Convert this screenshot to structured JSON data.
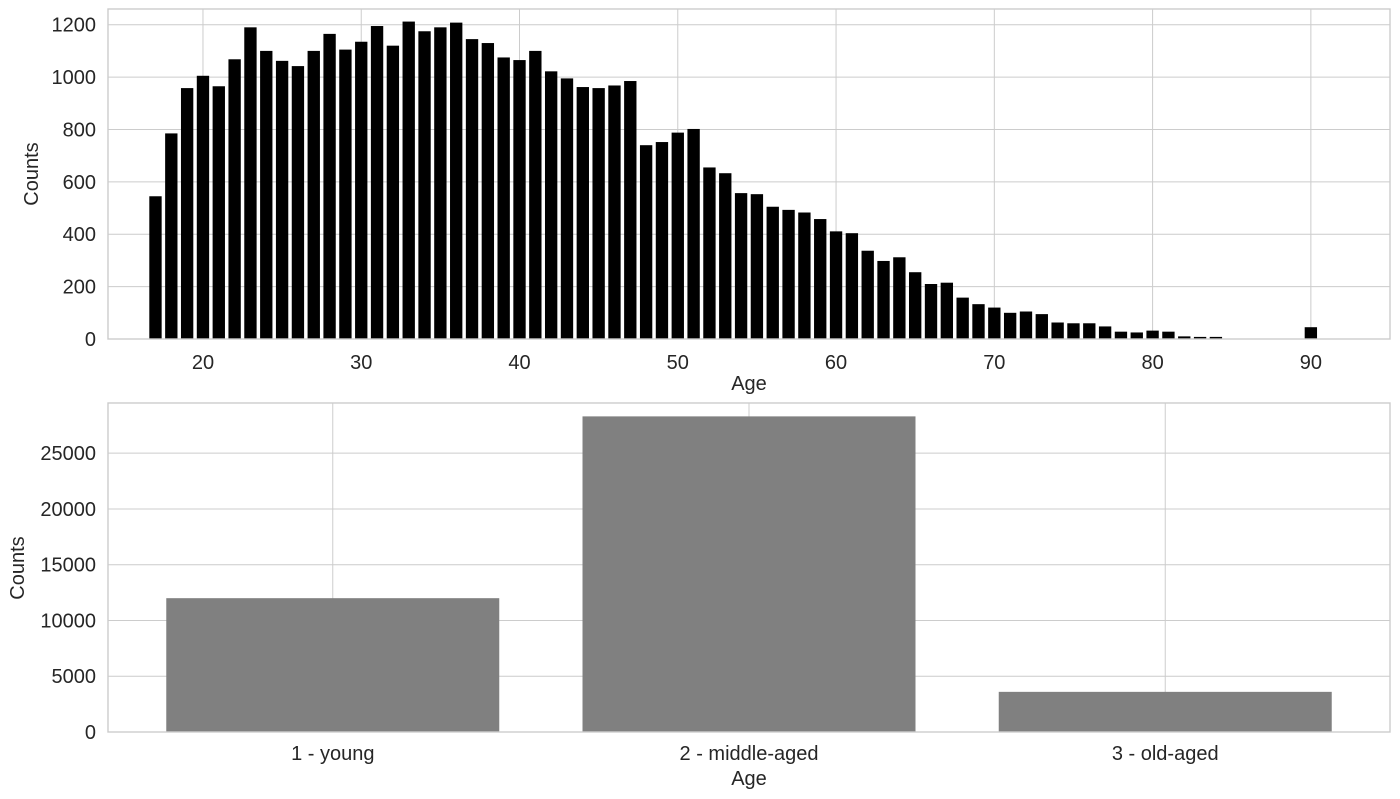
{
  "colors": {
    "background": "#ffffff",
    "grid": "#cccccc",
    "text": "#262626",
    "hist_bar": "#000000",
    "category_bar": "#808080"
  },
  "chart_data": [
    {
      "type": "bar",
      "title": "",
      "xlabel": "Age",
      "ylabel": "Counts",
      "grid": true,
      "xlim": [
        14,
        95
      ],
      "ylim": [
        0,
        1260
      ],
      "x_ticks": [
        20,
        30,
        40,
        50,
        60,
        70,
        80,
        90
      ],
      "y_ticks": [
        0,
        200,
        400,
        600,
        800,
        1000,
        1200
      ],
      "x": [
        17,
        18,
        19,
        20,
        21,
        22,
        23,
        24,
        25,
        26,
        27,
        28,
        29,
        30,
        31,
        32,
        33,
        34,
        35,
        36,
        37,
        38,
        39,
        40,
        41,
        42,
        43,
        44,
        45,
        46,
        47,
        48,
        49,
        50,
        51,
        52,
        53,
        54,
        55,
        56,
        57,
        58,
        59,
        60,
        61,
        62,
        63,
        64,
        65,
        66,
        67,
        68,
        69,
        70,
        71,
        72,
        73,
        74,
        75,
        76,
        77,
        78,
        79,
        80,
        81,
        82,
        83,
        84,
        85,
        86,
        87,
        88,
        89,
        90
      ],
      "values": [
        545,
        785,
        958,
        1005,
        965,
        1068,
        1190,
        1100,
        1062,
        1042,
        1100,
        1165,
        1105,
        1135,
        1195,
        1120,
        1212,
        1175,
        1190,
        1208,
        1145,
        1130,
        1075,
        1065,
        1100,
        1022,
        995,
        962,
        958,
        968,
        985,
        740,
        752,
        788,
        802,
        655,
        633,
        557,
        553,
        505,
        493,
        483,
        458,
        411,
        404,
        337,
        298,
        312,
        255,
        210,
        215,
        158,
        133,
        120,
        100,
        105,
        95,
        63,
        60,
        60,
        48,
        28,
        25,
        32,
        28,
        10,
        8,
        8,
        0,
        0,
        0,
        0,
        0,
        45
      ]
    },
    {
      "type": "bar",
      "title": "",
      "xlabel": "Age",
      "ylabel": "Counts",
      "grid": true,
      "ylim": [
        0,
        29500
      ],
      "y_ticks": [
        0,
        5000,
        10000,
        15000,
        20000,
        25000
      ],
      "categories": [
        "1 - young",
        "2 - middle-aged",
        "3 - old-aged"
      ],
      "values": [
        12000,
        28300,
        3600
      ]
    }
  ]
}
